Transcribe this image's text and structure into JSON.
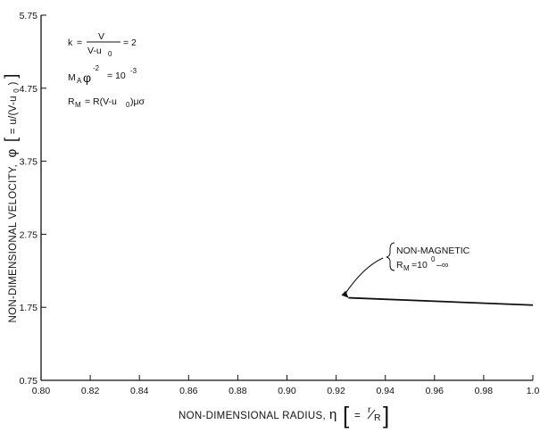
{
  "chart_data": {
    "type": "line",
    "title": "",
    "xlabel_main": "NON-DIMENSIONAL RADIUS,",
    "xlabel_symbol": "η",
    "xlabel_eq": "=",
    "xlabel_r": "r",
    "xlabel_R": "R",
    "ylabel_main": "NON-DIMENSIONAL VELOCITY,",
    "ylabel_symbol": "φ",
    "ylabel_eq": "= u/(V-u",
    "ylabel_sub": "0",
    "ylabel_close": ")",
    "xlim": [
      0.8,
      1.0
    ],
    "ylim": [
      0.75,
      5.75
    ],
    "x_ticks": [
      0.8,
      0.82,
      0.84,
      0.86,
      0.88,
      0.9,
      0.92,
      0.94,
      0.96,
      0.98,
      1.0
    ],
    "x_tick_labels": [
      "0.80",
      "0.82",
      "0.84",
      "0.86",
      "0.88",
      "0.90",
      "0.92",
      "0.94",
      "0.96",
      "0.98",
      "1.0"
    ],
    "y_ticks": [
      0.75,
      1.75,
      2.75,
      3.75,
      4.75,
      5.75
    ],
    "y_tick_labels": [
      "0.75",
      "1.75",
      "2.75",
      "3.75",
      "4.75",
      "5.75"
    ],
    "grid": false,
    "series": [
      {
        "name": "",
        "x": [
          0.925,
          1.0
        ],
        "y": [
          1.88,
          1.78
        ]
      }
    ],
    "parameters": {
      "k_lhs": "k",
      "k_eq": "=",
      "k_num": "V",
      "k_den": "V-u",
      "k_den_sub": "0",
      "k_value": "= 2",
      "ma_lhs": "M",
      "ma_sub": "A",
      "ma_phi": "φ",
      "ma_exp": "-2",
      "ma_eq": "= 10",
      "ma_val_exp": "-3",
      "rm_lhs": "R",
      "rm_sub": "M",
      "rm_eq": "= R(V-u",
      "rm_eq_sub": "0",
      "rm_eq_end": ")μσ"
    },
    "annotation": {
      "line1": "NON-MAGNETIC",
      "rm_lhs": "R",
      "rm_sub": "M",
      "rm_eq": "=10",
      "rm_exp": "0",
      "rm_tail": "–∞",
      "arrow_target": [
        0.925,
        1.88
      ]
    }
  }
}
